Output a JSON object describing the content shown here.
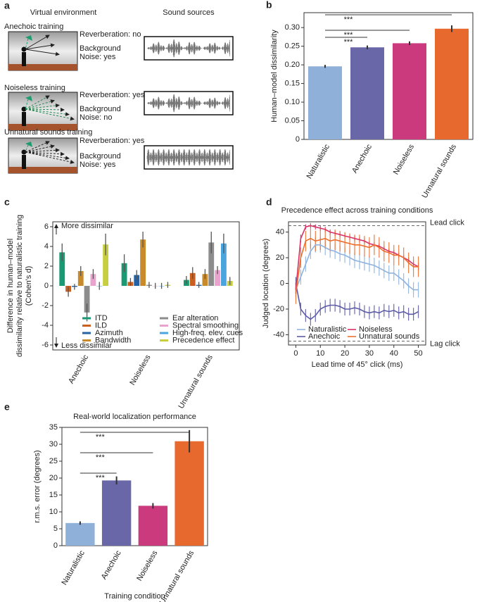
{
  "diagram": {
    "panel": "a",
    "headers": [
      "Virtual environment",
      "Sound sources"
    ],
    "rows": [
      {
        "title": "Anechoic training",
        "reverberation": "Reverberation: no",
        "background": "Background",
        "noise": "Noise: yes"
      },
      {
        "title": "Noiseless training",
        "reverberation": "Reverberation: yes",
        "background": "Background",
        "noise": "Noise: no"
      },
      {
        "title": "Unnatural sounds training",
        "reverberation": "Reverberation: yes",
        "background": "Background",
        "noise": "Noise: yes"
      }
    ]
  },
  "chart_data": [
    {
      "type": "bar",
      "panel": "b",
      "ylabel": "Human–model dissimilarity",
      "categories": [
        "Naturalistic",
        "Anechoic",
        "Noiseless",
        "Unnatural sounds"
      ],
      "values": [
        0.196,
        0.247,
        0.258,
        0.297
      ],
      "errors": [
        0.004,
        0.005,
        0.005,
        0.009
      ],
      "colors": [
        "#8fb0d8",
        "#6a67a8",
        "#cc3a7e",
        "#e8692e"
      ],
      "ylim": [
        0,
        0.34
      ],
      "yticks": [
        0,
        0.05,
        {
          "value": 0.1,
          "label": "0.10"
        },
        0.15,
        {
          "value": 0.2,
          "label": "0.20"
        },
        0.25,
        {
          "value": 0.3,
          "label": "0.30"
        }
      ],
      "significance": [
        "***",
        "***",
        "***"
      ]
    },
    {
      "type": "grouped_bar",
      "panel": "c",
      "ylabel": [
        "Difference in human–model",
        "dissimilarity relative to naturalistic training",
        "(Cohen's d)"
      ],
      "annotations": [
        "More dissimilar",
        "Less dissimilar"
      ],
      "categories": [
        "Anechoic",
        "Noiseless",
        "Unnatural sounds"
      ],
      "ylim": [
        -6.5,
        6.5
      ],
      "yticks": [
        -6,
        -4,
        -2,
        0,
        2,
        4,
        6
      ],
      "series": [
        {
          "name": "ITD",
          "color": "#1a9a72",
          "values": [
            3.4,
            2.3,
            0.6
          ],
          "errors": [
            0.9,
            0.9,
            0.4
          ]
        },
        {
          "name": "ILD",
          "color": "#c9601f",
          "values": [
            -0.6,
            0.4,
            1.3
          ],
          "errors": [
            0.5,
            0.4,
            0.6
          ]
        },
        {
          "name": "Azimuth",
          "color": "#2462a8",
          "values": [
            -0.1,
            1.1,
            0.1
          ],
          "errors": [
            0.3,
            0.5,
            0.3
          ]
        },
        {
          "name": "Bandwidth",
          "color": "#c98a2c",
          "values": [
            1.5,
            4.7,
            1.2
          ],
          "errors": [
            0.5,
            0.8,
            0.5
          ]
        },
        {
          "name": "Ear alteration",
          "color": "#8c8c8c",
          "values": [
            -2.7,
            0.1,
            4.4
          ],
          "errors": [
            0.9,
            0.3,
            1.1
          ]
        },
        {
          "name": "Spectral smoothing",
          "color": "#eaa3cd",
          "values": [
            1.2,
            0.0,
            1.6
          ],
          "errors": [
            0.5,
            0.3,
            0.4
          ]
        },
        {
          "name": "High-freq. elev. cues",
          "color": "#4aa5df",
          "values": [
            0.0,
            0.0,
            4.3
          ],
          "errors": [
            0.4,
            0.3,
            1.0
          ]
        },
        {
          "name": "Precedence effect",
          "color": "#c7cf40",
          "values": [
            4.2,
            0.1,
            0.5
          ],
          "errors": [
            1.1,
            0.3,
            0.4
          ]
        }
      ]
    },
    {
      "type": "line",
      "panel": "d",
      "title": "Precedence effect across training conditions",
      "xlabel": "Lead time of 45° click (ms)",
      "ylabel": "Judged location (degrees)",
      "x": [
        0,
        2,
        4,
        6,
        8,
        10,
        12,
        14,
        16,
        18,
        20,
        22,
        24,
        26,
        28,
        30,
        32,
        34,
        36,
        38,
        40,
        42,
        44,
        46,
        48,
        50
      ],
      "xlim": [
        -3,
        53
      ],
      "xticks": [
        0,
        10,
        20,
        30,
        40,
        50
      ],
      "ylim": [
        -48,
        48
      ],
      "yticks": [
        -40,
        -20,
        0,
        20,
        40
      ],
      "reference_lines": [
        {
          "value": 45,
          "label": "Lead click"
        },
        {
          "value": -45,
          "label": "Lag click"
        }
      ],
      "series": [
        {
          "name": "Naturalistic",
          "color": "#8fb3de",
          "values": [
            -5,
            5,
            15,
            25,
            30,
            30,
            28,
            26,
            25,
            23,
            22,
            20,
            18,
            17,
            16,
            15,
            14,
            12,
            10,
            8,
            8,
            5,
            2,
            -2,
            -5,
            -5
          ],
          "errors": [
            6,
            6,
            6,
            6,
            6,
            6,
            6,
            6,
            6,
            6,
            6,
            6,
            6,
            6,
            6,
            6,
            6,
            6,
            6,
            6,
            6,
            6,
            6,
            6,
            6,
            6
          ]
        },
        {
          "name": "Anechoic",
          "color": "#5d5ba6",
          "values": [
            0,
            -20,
            -25,
            -28,
            -25,
            -20,
            -18,
            -17,
            -17,
            -18,
            -20,
            -20,
            -19,
            -20,
            -22,
            -23,
            -22,
            -23,
            -21,
            -22,
            -21,
            -23,
            -22,
            -24,
            -24,
            -22
          ],
          "errors": [
            5,
            5,
            5,
            5,
            5,
            5,
            5,
            5,
            5,
            5,
            5,
            5,
            5,
            5,
            5,
            5,
            5,
            5,
            5,
            5,
            5,
            5,
            5,
            5,
            5,
            5
          ]
        },
        {
          "name": "Noiseless",
          "color": "#d93366",
          "values": [
            -5,
            35,
            44,
            45,
            44,
            43,
            42,
            40,
            39,
            38,
            37,
            36,
            35,
            34,
            33,
            31,
            30,
            29,
            27,
            25,
            24,
            22,
            20,
            18,
            15,
            13
          ],
          "errors": [
            3,
            3,
            2,
            2,
            2,
            2,
            2,
            2,
            2,
            2,
            2,
            2,
            2,
            2,
            2,
            2,
            2,
            2,
            2,
            2,
            2,
            2,
            2,
            2,
            3,
            3
          ]
        },
        {
          "name": "Unnatural sounds",
          "color": "#ee6f2d",
          "values": [
            -8,
            20,
            33,
            35,
            33,
            34,
            35,
            33,
            34,
            33,
            32,
            31,
            30,
            30,
            29,
            28,
            30,
            28,
            25,
            24,
            22,
            22,
            20,
            16,
            13,
            13
          ],
          "errors": [
            8,
            8,
            8,
            8,
            8,
            8,
            8,
            8,
            8,
            8,
            8,
            8,
            8,
            8,
            8,
            8,
            8,
            8,
            8,
            8,
            8,
            8,
            8,
            8,
            8,
            8
          ]
        }
      ]
    },
    {
      "type": "bar",
      "panel": "e",
      "title": "Real-world localization performance",
      "ylabel": "r.m.s. error (degrees)",
      "xlabel": "Training condition",
      "categories": [
        "Naturalistic",
        "Anechoic",
        "Noiseless",
        "Unnatural sounds"
      ],
      "values": [
        6.7,
        19.3,
        11.8,
        30.9
      ],
      "errors": [
        0.5,
        1.2,
        0.8,
        3.3
      ],
      "colors": [
        "#8fb0d8",
        "#6a67a8",
        "#cc3a7e",
        "#e8692e"
      ],
      "ylim": [
        0,
        35
      ],
      "yticks": [
        0,
        5,
        10,
        15,
        20,
        25,
        30,
        35
      ],
      "significance": [
        "***",
        "***",
        "***"
      ]
    }
  ]
}
